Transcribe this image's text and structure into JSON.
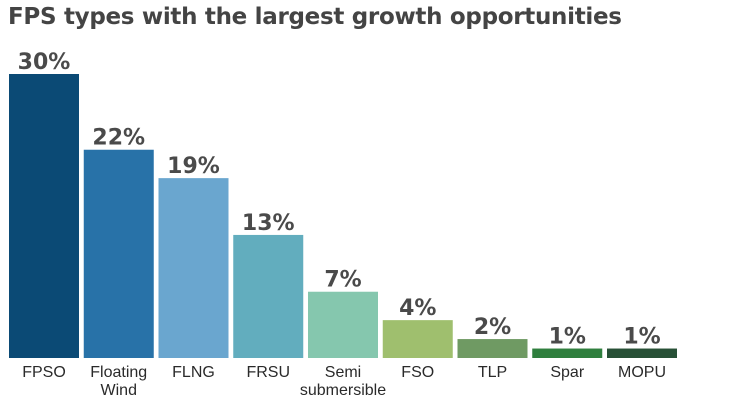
{
  "chart_data": {
    "type": "bar",
    "title": "FPS types with the largest growth opportunities",
    "categories": [
      "FPSO",
      "Floating Wind",
      "FLNG",
      "FRSU",
      "Semi submersible",
      "FSO",
      "TLP",
      "Spar",
      "MOPU"
    ],
    "category_lines": [
      [
        "FPSO"
      ],
      [
        "Floating",
        "Wind"
      ],
      [
        "FLNG"
      ],
      [
        "FRSU"
      ],
      [
        "Semi",
        "submersible"
      ],
      [
        "FSO"
      ],
      [
        "TLP"
      ],
      [
        "Spar"
      ],
      [
        "MOPU"
      ]
    ],
    "values": [
      30,
      22,
      19,
      13,
      7,
      4,
      2,
      1,
      1
    ],
    "value_labels": [
      "30%",
      "22%",
      "19%",
      "13%",
      "7%",
      "4%",
      "2%",
      "1%",
      "1%"
    ],
    "colors": [
      "#0b4a75",
      "#2872a8",
      "#6aa6cf",
      "#62adbe",
      "#85c7ae",
      "#9fbf6e",
      "#6f9a63",
      "#2f7f3e",
      "#275036"
    ],
    "unit": "%",
    "ylim": [
      0,
      30
    ],
    "grid": false,
    "legend": "none"
  }
}
